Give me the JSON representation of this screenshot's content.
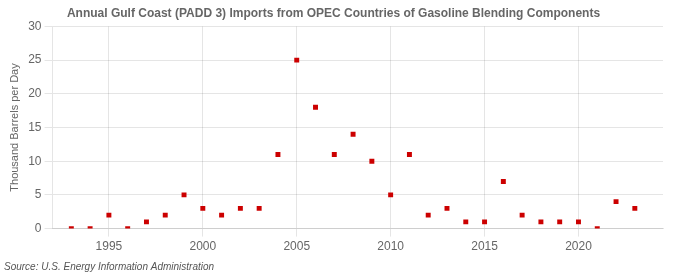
{
  "chart_data": {
    "type": "scatter",
    "title": "Annual Gulf Coast (PADD 3) Imports from OPEC Countries of Gasoline Blending Components",
    "ylabel": "Thousand Barrels per Day",
    "source": "Source: U.S. Energy Information Administration",
    "x": [
      1993,
      1994,
      1995,
      1996,
      1997,
      1998,
      1999,
      2000,
      2001,
      2002,
      2003,
      2004,
      2005,
      2006,
      2007,
      2008,
      2009,
      2010,
      2011,
      2012,
      2013,
      2014,
      2015,
      2016,
      2017,
      2018,
      2019,
      2020,
      2021,
      2022,
      2023
    ],
    "values": [
      0,
      0,
      2,
      0,
      1,
      2,
      5,
      3,
      2,
      3,
      3,
      11,
      25,
      18,
      11,
      14,
      10,
      5,
      11,
      2,
      3,
      1,
      1,
      7,
      2,
      1,
      1,
      1,
      0,
      4,
      3
    ],
    "color": "#cc0000",
    "marker": "square",
    "xlim": [
      1992.0,
      2024.5
    ],
    "ylim": [
      0,
      30
    ],
    "xticks": [
      1995,
      2000,
      2005,
      2010,
      2015,
      2020
    ],
    "yticks": [
      0,
      5,
      10,
      15,
      20,
      25,
      30
    ],
    "grid": true
  }
}
